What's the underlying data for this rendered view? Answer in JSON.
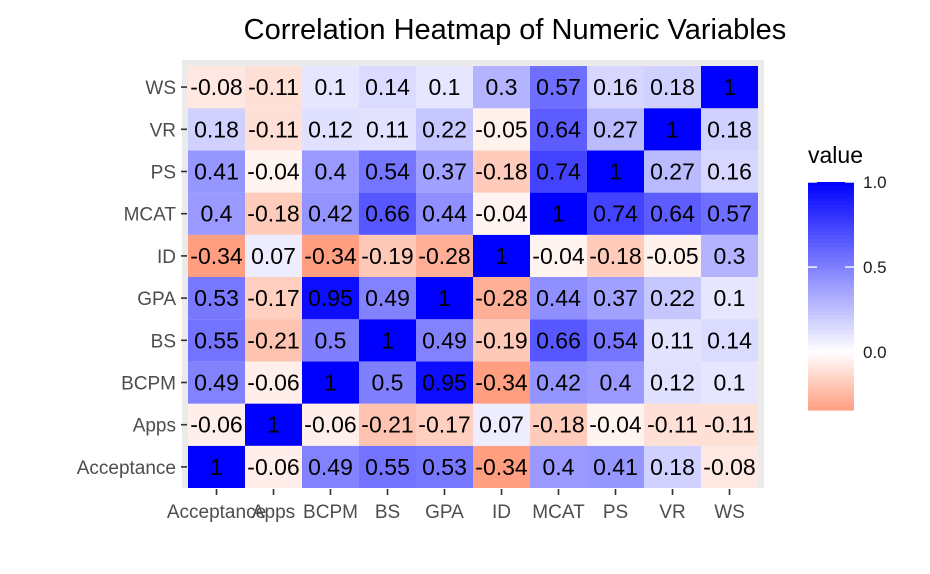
{
  "chart_data": {
    "type": "heatmap",
    "title": "Correlation Heatmap of Numeric Variables",
    "x_categories": [
      "Acceptance",
      "Apps",
      "BCPM",
      "BS",
      "GPA",
      "ID",
      "MCAT",
      "PS",
      "VR",
      "WS"
    ],
    "y_categories": [
      "Acceptance",
      "Apps",
      "BCPM",
      "BS",
      "GPA",
      "ID",
      "MCAT",
      "PS",
      "VR",
      "WS"
    ],
    "matrix": [
      [
        1,
        -0.06,
        0.49,
        0.55,
        0.53,
        -0.34,
        0.4,
        0.41,
        0.18,
        -0.08
      ],
      [
        -0.06,
        1,
        -0.06,
        -0.21,
        -0.17,
        0.07,
        -0.18,
        -0.04,
        -0.11,
        -0.11
      ],
      [
        0.49,
        -0.06,
        1,
        0.5,
        0.95,
        -0.34,
        0.42,
        0.4,
        0.12,
        0.1
      ],
      [
        0.55,
        -0.21,
        0.5,
        1,
        0.49,
        -0.19,
        0.66,
        0.54,
        0.11,
        0.14
      ],
      [
        0.53,
        -0.17,
        0.95,
        0.49,
        1,
        -0.28,
        0.44,
        0.37,
        0.22,
        0.1
      ],
      [
        -0.34,
        0.07,
        -0.34,
        -0.19,
        -0.28,
        1,
        -0.04,
        -0.18,
        -0.05,
        0.3
      ],
      [
        0.4,
        -0.18,
        0.42,
        0.66,
        0.44,
        -0.04,
        1,
        0.74,
        0.64,
        0.57
      ],
      [
        0.41,
        -0.04,
        0.4,
        0.54,
        0.37,
        -0.18,
        0.74,
        1,
        0.27,
        0.16
      ],
      [
        0.18,
        -0.11,
        0.12,
        0.11,
        0.22,
        -0.05,
        0.64,
        0.27,
        1,
        0.18
      ],
      [
        -0.08,
        -0.11,
        0.1,
        0.14,
        0.1,
        0.3,
        0.57,
        0.16,
        0.18,
        1
      ]
    ],
    "color_scale": {
      "low": "#ff9e80",
      "mid": "#ffffff",
      "high": "#0000ff",
      "midpoint": 0,
      "min": -0.34,
      "max": 1
    },
    "legend": {
      "title": "value",
      "placement": "right",
      "ticks": [
        1.0,
        0.5,
        0.0
      ],
      "tick_labels": [
        "1.0",
        "0.5",
        "0.0"
      ]
    },
    "panel_background": "#ebebeb",
    "grid": true
  }
}
